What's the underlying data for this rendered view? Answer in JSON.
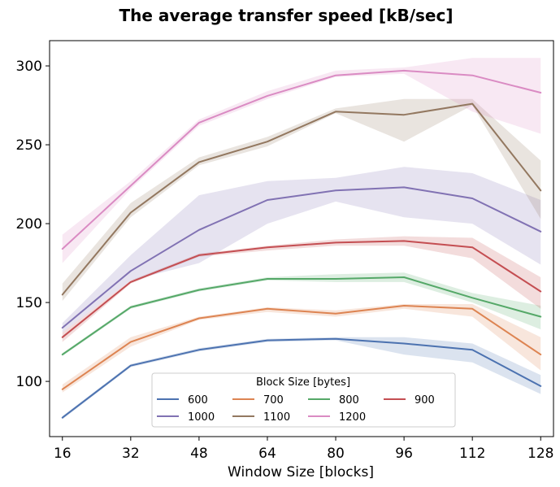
{
  "chart_data": {
    "type": "line",
    "title": "The average transfer speed [kB/sec]",
    "xlabel": "Window Size [blocks]",
    "ylabel": "",
    "x": [
      16,
      32,
      48,
      64,
      80,
      96,
      112,
      128
    ],
    "xticks": [
      "16",
      "32",
      "48",
      "64",
      "80",
      "96",
      "112",
      "128"
    ],
    "xlim": [
      13,
      131
    ],
    "yticks": [
      "100",
      "150",
      "200",
      "250",
      "300"
    ],
    "ytick_values": [
      100,
      150,
      200,
      250,
      300
    ],
    "ylim": [
      65,
      316
    ],
    "legend": {
      "title": "Block Size [bytes]",
      "placement": "lower center",
      "columns": 4
    },
    "series": [
      {
        "name": "600",
        "color": "#4c72b0",
        "values": [
          77,
          110,
          120,
          126,
          127,
          124,
          120,
          97
        ],
        "lower": [
          76,
          109,
          119,
          125,
          126,
          117,
          112,
          92
        ],
        "upper": [
          78,
          111,
          121,
          127,
          128,
          128,
          124,
          104
        ]
      },
      {
        "name": "700",
        "color": "#dd8452",
        "values": [
          95,
          125,
          140,
          146,
          143,
          148,
          146,
          117
        ],
        "lower": [
          93,
          122,
          139,
          144,
          141,
          146,
          141,
          107
        ],
        "upper": [
          98,
          128,
          141,
          147,
          145,
          149,
          149,
          128
        ]
      },
      {
        "name": "800",
        "color": "#55a868",
        "values": [
          117,
          147,
          158,
          165,
          165,
          166,
          153,
          141
        ],
        "lower": [
          116,
          146,
          157,
          164,
          163,
          163,
          150,
          133
        ],
        "upper": [
          118,
          148,
          159,
          166,
          168,
          169,
          156,
          148
        ]
      },
      {
        "name": "900",
        "color": "#c44e52",
        "values": [
          128,
          163,
          180,
          185,
          188,
          189,
          185,
          157
        ],
        "lower": [
          125,
          162,
          179,
          183,
          186,
          186,
          178,
          146
        ],
        "upper": [
          131,
          164,
          181,
          186,
          190,
          192,
          191,
          166
        ]
      },
      {
        "name": "1000",
        "color": "#8172b3",
        "values": [
          134,
          170,
          196,
          215,
          221,
          223,
          216,
          195
        ],
        "lower": [
          131,
          164,
          175,
          200,
          214,
          204,
          200,
          174
        ],
        "upper": [
          137,
          180,
          218,
          227,
          229,
          236,
          232,
          215
        ]
      },
      {
        "name": "1100",
        "color": "#937860",
        "values": [
          155,
          207,
          239,
          252,
          271,
          269,
          276,
          221
        ],
        "lower": [
          151,
          204,
          237,
          249,
          270,
          252,
          275,
          203
        ],
        "upper": [
          162,
          213,
          242,
          255,
          273,
          279,
          279,
          240
        ]
      },
      {
        "name": "1200",
        "color": "#da8bc3",
        "values": [
          184,
          224,
          264,
          281,
          294,
          297,
          294,
          283
        ],
        "lower": [
          175,
          222,
          262,
          279,
          293,
          295,
          271,
          257
        ],
        "upper": [
          193,
          227,
          266,
          284,
          297,
          299,
          305,
          305
        ]
      }
    ]
  }
}
